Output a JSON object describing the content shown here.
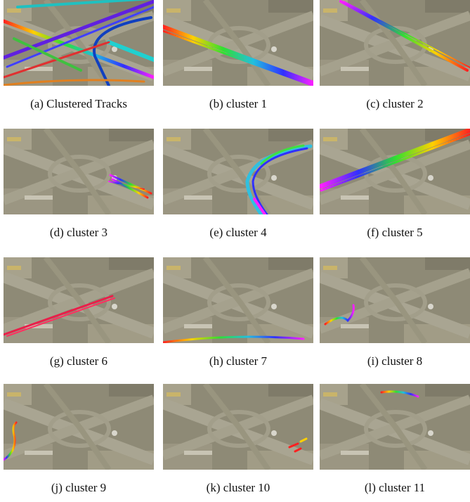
{
  "figure": {
    "captions": [
      "(a) Clustered Tracks",
      "(b) cluster 1",
      "(c) cluster 2",
      "(d) cluster 3",
      "(e) cluster 4",
      "(f) cluster 5",
      "(g) cluster 6",
      "(h) cluster 7",
      "(i) cluster 8",
      "(j) cluster 9",
      "(k) cluster 10",
      "(l) cluster 11"
    ]
  }
}
